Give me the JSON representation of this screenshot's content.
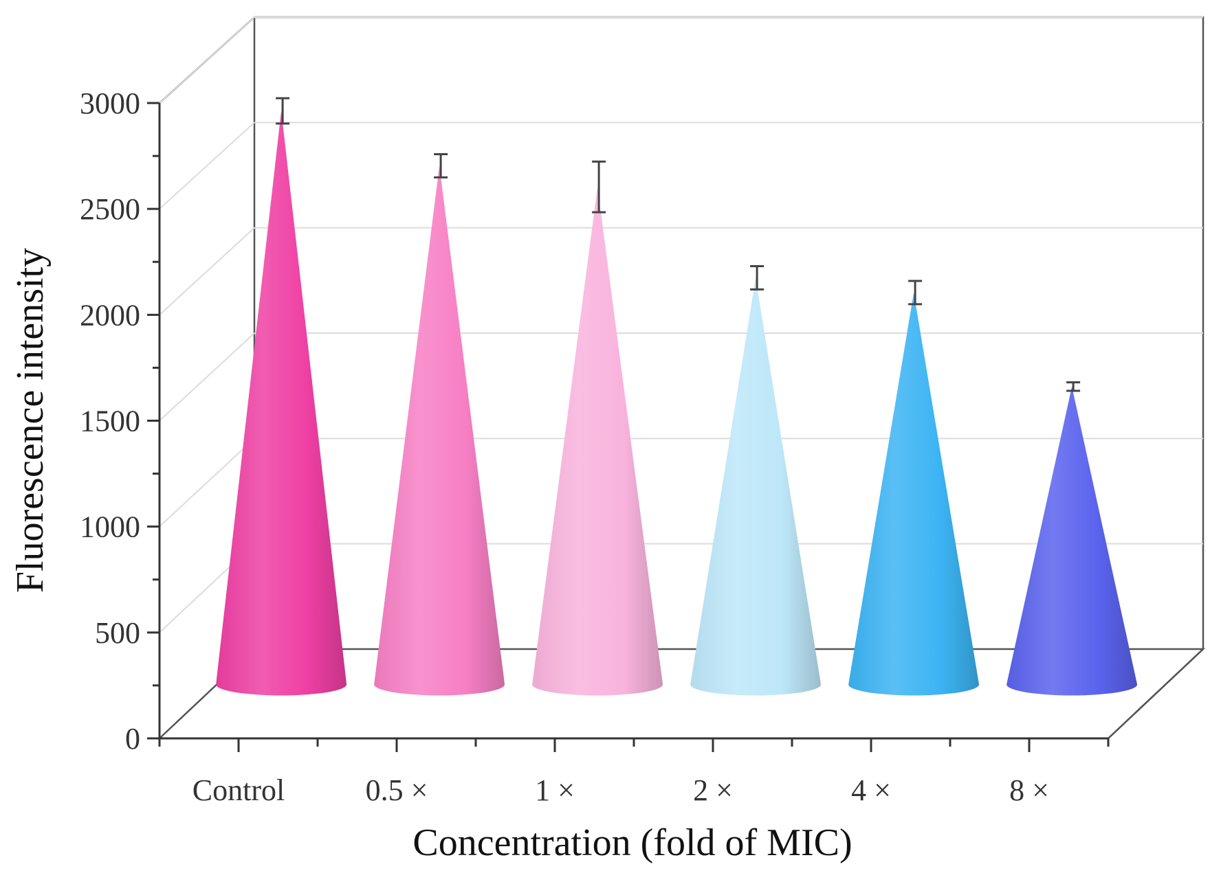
{
  "chart_data": {
    "type": "bar",
    "style": "3d-cone",
    "categories": [
      "Control",
      "0.5 ×",
      "1 ×",
      "2 ×",
      "4 ×",
      "8 ×"
    ],
    "values": [
      2780,
      2520,
      2420,
      1990,
      1920,
      1475
    ],
    "errors": [
      60,
      55,
      120,
      55,
      55,
      20
    ],
    "colors": [
      "#ef3fa3",
      "#f77fc4",
      "#f9b3dd",
      "#bde7f9",
      "#3cb4f3",
      "#5a63ee"
    ],
    "xlabel": "Concentration (fold of MIC)",
    "ylabel": "Fluorescence intensity",
    "ylim": [
      0,
      3000
    ],
    "yticks": [
      0,
      500,
      1000,
      1500,
      2000,
      2500,
      3000
    ],
    "grid": true
  }
}
